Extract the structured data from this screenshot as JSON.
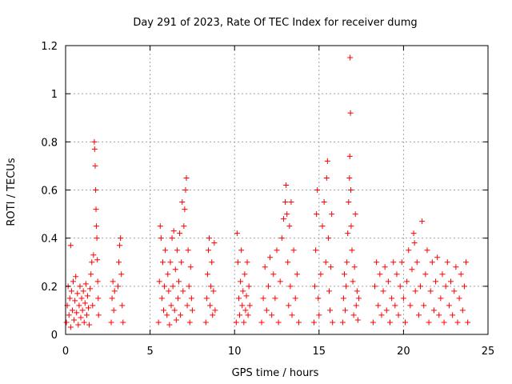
{
  "chart_data": {
    "type": "scatter",
    "title": "Day 291 of 2023, Rate Of TEC Index for receiver dumg",
    "xlabel": "GPS time / hours",
    "ylabel": "ROTI / TECUs",
    "xlim": [
      0,
      25
    ],
    "ylim": [
      0,
      1.2
    ],
    "xticks": [
      0,
      5,
      10,
      15,
      20,
      25
    ],
    "yticks": [
      0,
      0.2,
      0.4,
      0.6,
      0.8,
      1,
      1.2
    ],
    "xtick_labels": [
      "0",
      "5",
      "10",
      "15",
      "20",
      "25"
    ],
    "ytick_labels": [
      "0",
      "0.2",
      "0.4",
      "0.6",
      "0.8",
      "1",
      "1.2"
    ],
    "grid": true,
    "marker": "+",
    "series_color": "#ff0000",
    "series": [
      {
        "name": "ROTI",
        "points": [
          [
            0.05,
            0.05
          ],
          [
            0.1,
            0.12
          ],
          [
            0.15,
            0.2
          ],
          [
            0.2,
            0.08
          ],
          [
            0.25,
            0.15
          ],
          [
            0.3,
            0.37
          ],
          [
            0.3,
            0.03
          ],
          [
            0.35,
            0.18
          ],
          [
            0.4,
            0.1
          ],
          [
            0.45,
            0.22
          ],
          [
            0.5,
            0.06
          ],
          [
            0.55,
            0.14
          ],
          [
            0.6,
            0.24
          ],
          [
            0.65,
            0.09
          ],
          [
            0.7,
            0.17
          ],
          [
            0.75,
            0.04
          ],
          [
            0.8,
            0.12
          ],
          [
            0.85,
            0.2
          ],
          [
            0.9,
            0.07
          ],
          [
            0.95,
            0.15
          ],
          [
            1.0,
            0.1
          ],
          [
            1.05,
            0.18
          ],
          [
            1.1,
            0.05
          ],
          [
            1.15,
            0.13
          ],
          [
            1.2,
            0.21
          ],
          [
            1.25,
            0.08
          ],
          [
            1.3,
            0.16
          ],
          [
            1.35,
            0.11
          ],
          [
            1.4,
            0.04
          ],
          [
            1.45,
            0.19
          ],
          [
            1.5,
            0.25
          ],
          [
            1.55,
            0.3
          ],
          [
            1.6,
            0.12
          ],
          [
            1.65,
            0.33
          ],
          [
            1.7,
            0.8
          ],
          [
            1.72,
            0.77
          ],
          [
            1.75,
            0.7
          ],
          [
            1.78,
            0.6
          ],
          [
            1.8,
            0.52
          ],
          [
            1.82,
            0.45
          ],
          [
            1.85,
            0.4
          ],
          [
            1.88,
            0.31
          ],
          [
            1.9,
            0.22
          ],
          [
            1.93,
            0.15
          ],
          [
            1.95,
            0.08
          ],
          [
            2.7,
            0.05
          ],
          [
            2.75,
            0.15
          ],
          [
            2.8,
            0.22
          ],
          [
            2.85,
            0.1
          ],
          [
            2.9,
            0.18
          ],
          [
            3.1,
            0.2
          ],
          [
            3.15,
            0.3
          ],
          [
            3.2,
            0.37
          ],
          [
            3.25,
            0.4
          ],
          [
            3.3,
            0.25
          ],
          [
            3.35,
            0.12
          ],
          [
            3.4,
            0.05
          ],
          [
            5.5,
            0.05
          ],
          [
            5.55,
            0.22
          ],
          [
            5.6,
            0.45
          ],
          [
            5.65,
            0.4
          ],
          [
            5.7,
            0.15
          ],
          [
            5.75,
            0.3
          ],
          [
            5.8,
            0.1
          ],
          [
            5.85,
            0.2
          ],
          [
            5.9,
            0.35
          ],
          [
            6.0,
            0.08
          ],
          [
            6.05,
            0.25
          ],
          [
            6.1,
            0.18
          ],
          [
            6.15,
            0.04
          ],
          [
            6.2,
            0.3
          ],
          [
            6.25,
            0.12
          ],
          [
            6.3,
            0.4
          ],
          [
            6.35,
            0.2
          ],
          [
            6.4,
            0.43
          ],
          [
            6.45,
            0.1
          ],
          [
            6.5,
            0.27
          ],
          [
            6.55,
            0.06
          ],
          [
            6.6,
            0.35
          ],
          [
            6.65,
            0.15
          ],
          [
            6.7,
            0.22
          ],
          [
            6.75,
            0.42
          ],
          [
            6.8,
            0.08
          ],
          [
            6.85,
            0.3
          ],
          [
            6.9,
            0.55
          ],
          [
            6.95,
            0.18
          ],
          [
            7.0,
            0.45
          ],
          [
            7.05,
            0.52
          ],
          [
            7.1,
            0.6
          ],
          [
            7.15,
            0.65
          ],
          [
            7.2,
            0.12
          ],
          [
            7.25,
            0.35
          ],
          [
            7.3,
            0.2
          ],
          [
            7.35,
            0.05
          ],
          [
            7.4,
            0.28
          ],
          [
            7.45,
            0.15
          ],
          [
            7.5,
            0.1
          ],
          [
            8.3,
            0.05
          ],
          [
            8.35,
            0.15
          ],
          [
            8.4,
            0.25
          ],
          [
            8.45,
            0.35
          ],
          [
            8.5,
            0.4
          ],
          [
            8.55,
            0.12
          ],
          [
            8.6,
            0.2
          ],
          [
            8.65,
            0.3
          ],
          [
            8.7,
            0.08
          ],
          [
            8.75,
            0.18
          ],
          [
            8.8,
            0.38
          ],
          [
            8.85,
            0.1
          ],
          [
            10.1,
            0.05
          ],
          [
            10.15,
            0.42
          ],
          [
            10.2,
            0.3
          ],
          [
            10.25,
            0.15
          ],
          [
            10.3,
            0.08
          ],
          [
            10.35,
            0.22
          ],
          [
            10.4,
            0.35
          ],
          [
            10.45,
            0.12
          ],
          [
            10.5,
            0.18
          ],
          [
            10.55,
            0.05
          ],
          [
            10.6,
            0.25
          ],
          [
            10.65,
            0.1
          ],
          [
            10.7,
            0.16
          ],
          [
            10.75,
            0.3
          ],
          [
            10.8,
            0.08
          ],
          [
            10.85,
            0.2
          ],
          [
            10.9,
            0.12
          ],
          [
            11.6,
            0.05
          ],
          [
            11.7,
            0.15
          ],
          [
            11.8,
            0.28
          ],
          [
            11.9,
            0.1
          ],
          [
            12.0,
            0.2
          ],
          [
            12.1,
            0.32
          ],
          [
            12.2,
            0.08
          ],
          [
            12.3,
            0.25
          ],
          [
            12.4,
            0.15
          ],
          [
            12.5,
            0.35
          ],
          [
            12.6,
            0.05
          ],
          [
            12.7,
            0.22
          ],
          [
            12.8,
            0.4
          ],
          [
            12.9,
            0.48
          ],
          [
            13.0,
            0.55
          ],
          [
            13.05,
            0.62
          ],
          [
            13.1,
            0.5
          ],
          [
            13.15,
            0.3
          ],
          [
            13.2,
            0.12
          ],
          [
            13.25,
            0.45
          ],
          [
            13.3,
            0.2
          ],
          [
            13.35,
            0.55
          ],
          [
            13.4,
            0.08
          ],
          [
            13.5,
            0.35
          ],
          [
            13.6,
            0.15
          ],
          [
            13.7,
            0.25
          ],
          [
            13.8,
            0.05
          ],
          [
            14.7,
            0.05
          ],
          [
            14.75,
            0.2
          ],
          [
            14.8,
            0.35
          ],
          [
            14.85,
            0.5
          ],
          [
            14.9,
            0.6
          ],
          [
            14.95,
            0.15
          ],
          [
            15.0,
            0.08
          ],
          [
            15.1,
            0.25
          ],
          [
            15.2,
            0.45
          ],
          [
            15.3,
            0.55
          ],
          [
            15.4,
            0.3
          ],
          [
            15.45,
            0.65
          ],
          [
            15.5,
            0.72
          ],
          [
            15.55,
            0.4
          ],
          [
            15.6,
            0.18
          ],
          [
            15.65,
            0.1
          ],
          [
            15.7,
            0.28
          ],
          [
            15.75,
            0.5
          ],
          [
            15.8,
            0.05
          ],
          [
            16.4,
            0.05
          ],
          [
            16.45,
            0.15
          ],
          [
            16.5,
            0.25
          ],
          [
            16.55,
            0.1
          ],
          [
            16.6,
            0.2
          ],
          [
            16.65,
            0.3
          ],
          [
            16.7,
            0.42
          ],
          [
            16.75,
            0.55
          ],
          [
            16.8,
            0.65
          ],
          [
            16.82,
            0.74
          ],
          [
            16.84,
            1.15
          ],
          [
            16.86,
            0.92
          ],
          [
            16.88,
            0.6
          ],
          [
            16.9,
            0.45
          ],
          [
            16.95,
            0.35
          ],
          [
            17.0,
            0.22
          ],
          [
            17.05,
            0.08
          ],
          [
            17.1,
            0.28
          ],
          [
            17.15,
            0.5
          ],
          [
            17.2,
            0.12
          ],
          [
            17.25,
            0.18
          ],
          [
            17.3,
            0.06
          ],
          [
            17.35,
            0.15
          ],
          [
            18.2,
            0.05
          ],
          [
            18.3,
            0.2
          ],
          [
            18.4,
            0.3
          ],
          [
            18.5,
            0.12
          ],
          [
            18.6,
            0.25
          ],
          [
            18.7,
            0.08
          ],
          [
            18.8,
            0.18
          ],
          [
            18.9,
            0.28
          ],
          [
            19.0,
            0.1
          ],
          [
            19.1,
            0.22
          ],
          [
            19.2,
            0.05
          ],
          [
            19.3,
            0.15
          ],
          [
            19.4,
            0.3
          ],
          [
            19.5,
            0.12
          ],
          [
            19.6,
            0.25
          ],
          [
            19.7,
            0.08
          ],
          [
            19.8,
            0.2
          ],
          [
            19.9,
            0.3
          ],
          [
            20.0,
            0.15
          ],
          [
            20.1,
            0.05
          ],
          [
            20.2,
            0.22
          ],
          [
            20.3,
            0.35
          ],
          [
            20.4,
            0.12
          ],
          [
            20.5,
            0.27
          ],
          [
            20.6,
            0.42
          ],
          [
            20.65,
            0.38
          ],
          [
            20.7,
            0.18
          ],
          [
            20.8,
            0.3
          ],
          [
            20.9,
            0.08
          ],
          [
            21.0,
            0.2
          ],
          [
            21.1,
            0.47
          ],
          [
            21.2,
            0.12
          ],
          [
            21.3,
            0.25
          ],
          [
            21.4,
            0.35
          ],
          [
            21.5,
            0.05
          ],
          [
            21.6,
            0.18
          ],
          [
            21.7,
            0.3
          ],
          [
            21.8,
            0.1
          ],
          [
            21.9,
            0.22
          ],
          [
            22.0,
            0.32
          ],
          [
            22.1,
            0.08
          ],
          [
            22.2,
            0.15
          ],
          [
            22.3,
            0.25
          ],
          [
            22.4,
            0.05
          ],
          [
            22.5,
            0.2
          ],
          [
            22.6,
            0.3
          ],
          [
            22.7,
            0.12
          ],
          [
            22.8,
            0.22
          ],
          [
            22.9,
            0.08
          ],
          [
            23.0,
            0.18
          ],
          [
            23.1,
            0.28
          ],
          [
            23.2,
            0.05
          ],
          [
            23.3,
            0.15
          ],
          [
            23.4,
            0.25
          ],
          [
            23.5,
            0.1
          ],
          [
            23.6,
            0.2
          ],
          [
            23.7,
            0.3
          ],
          [
            23.8,
            0.05
          ]
        ]
      }
    ]
  }
}
